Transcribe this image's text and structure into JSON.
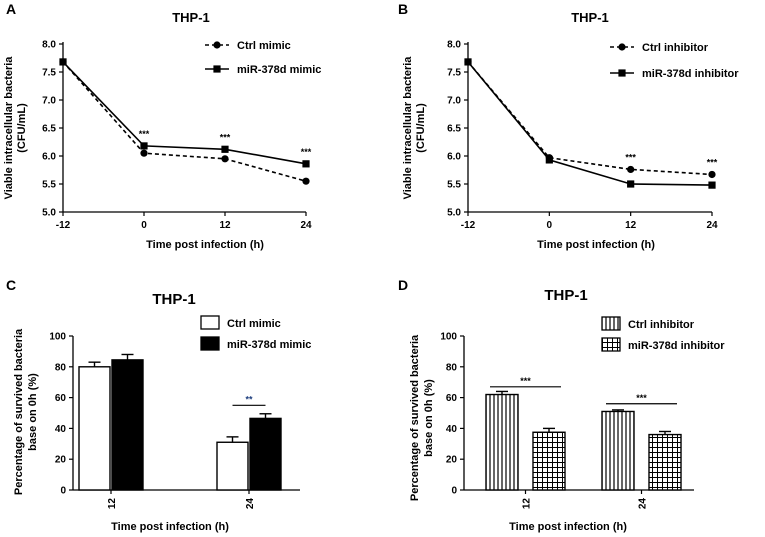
{
  "colors": {
    "ink": "#000000",
    "paper": "#ffffff",
    "sig_blue": "#1f3f7f"
  },
  "panels": {
    "A": {
      "letter": "A"
    },
    "B": {
      "letter": "B"
    },
    "C": {
      "letter": "C"
    },
    "D": {
      "letter": "D"
    }
  },
  "chart_data": [
    {
      "id": "A",
      "type": "line",
      "title": "THP-1",
      "xlabel": "Time post infection (h)",
      "ylabel_lines": [
        "Viable intracellular bacteria",
        "(CFU/mL)"
      ],
      "x": [
        -12,
        0,
        12,
        24
      ],
      "x_tick_labels": [
        "-12",
        "0",
        "12",
        "24"
      ],
      "ylim": [
        5.0,
        8.0
      ],
      "y_ticks": [
        "5.0",
        "5.5",
        "6.0",
        "6.5",
        "7.0",
        "7.5",
        "8.0"
      ],
      "legend_position": "top-right",
      "series": [
        {
          "name": "Ctrl mimic",
          "marker": "circle",
          "style": "dashed",
          "values": [
            7.68,
            6.05,
            5.95,
            5.55
          ]
        },
        {
          "name": "miR-378d mimic",
          "marker": "square",
          "style": "solid",
          "values": [
            7.68,
            6.18,
            6.12,
            5.86
          ]
        }
      ],
      "annotations": [
        {
          "x": 0,
          "text": "***",
          "y": 6.34
        },
        {
          "x": 12,
          "text": "***",
          "y": 6.28
        },
        {
          "x": 24,
          "text": "***",
          "y": 6.02
        }
      ]
    },
    {
      "id": "B",
      "type": "line",
      "title": "THP-1",
      "xlabel": "Time post infection (h)",
      "ylabel_lines": [
        "Viable intracellular bacteria",
        "(CFU/mL)"
      ],
      "x": [
        -12,
        0,
        12,
        24
      ],
      "x_tick_labels": [
        "-12",
        "0",
        "12",
        "24"
      ],
      "ylim": [
        5.0,
        8.0
      ],
      "y_ticks": [
        "5.0",
        "5.5",
        "6.0",
        "6.5",
        "7.0",
        "7.5",
        "8.0"
      ],
      "legend_position": "top-right",
      "series": [
        {
          "name": "Ctrl inhibitor",
          "marker": "circle",
          "style": "dashed",
          "values": [
            7.68,
            5.97,
            5.76,
            5.67
          ]
        },
        {
          "name": "miR-378d inhibitor",
          "marker": "square",
          "style": "solid",
          "values": [
            7.68,
            5.93,
            5.5,
            5.48
          ]
        }
      ],
      "annotations": [
        {
          "x": 12,
          "text": "***",
          "y": 5.92
        },
        {
          "x": 24,
          "text": "***",
          "y": 5.83
        }
      ]
    },
    {
      "id": "C",
      "type": "bar",
      "title": "THP-1",
      "xlabel": "Time post infection (h)",
      "ylabel_lines": [
        "Percentage of survived bacteria",
        "base on 0h (%)"
      ],
      "categories": [
        "12",
        "24"
      ],
      "ylim": [
        0,
        100
      ],
      "y_ticks": [
        "0",
        "20",
        "40",
        "60",
        "80",
        "100"
      ],
      "legend_position": "top-right",
      "series": [
        {
          "name": "Ctrl mimic",
          "fill": "white",
          "values": [
            80,
            31
          ],
          "errors": [
            3,
            3.5
          ]
        },
        {
          "name": "miR-378d mimic",
          "fill": "black",
          "values": [
            84.5,
            46.5
          ],
          "errors": [
            3.5,
            3
          ]
        }
      ],
      "annotations": [
        {
          "category": "24",
          "text": "**",
          "y": 55
        }
      ]
    },
    {
      "id": "D",
      "type": "bar",
      "title": "THP-1",
      "xlabel": "Time post infection (h)",
      "ylabel_lines": [
        "Percentage of survived bacteria",
        "base on 0h (%)"
      ],
      "categories": [
        "12",
        "24"
      ],
      "ylim": [
        0,
        100
      ],
      "y_ticks": [
        "0",
        "20",
        "40",
        "60",
        "80",
        "100"
      ],
      "legend_position": "top-right",
      "series": [
        {
          "name": "Ctrl inhibitor",
          "fill": "vertical-stripes",
          "values": [
            62,
            51
          ],
          "errors": [
            2,
            1
          ]
        },
        {
          "name": "miR-378d inhibitor",
          "fill": "grid",
          "values": [
            37.5,
            36
          ],
          "errors": [
            2.5,
            2
          ]
        }
      ],
      "annotations": [
        {
          "category": "12",
          "text": "***",
          "y": 67
        },
        {
          "category": "24",
          "text": "***",
          "y": 56
        }
      ]
    }
  ]
}
